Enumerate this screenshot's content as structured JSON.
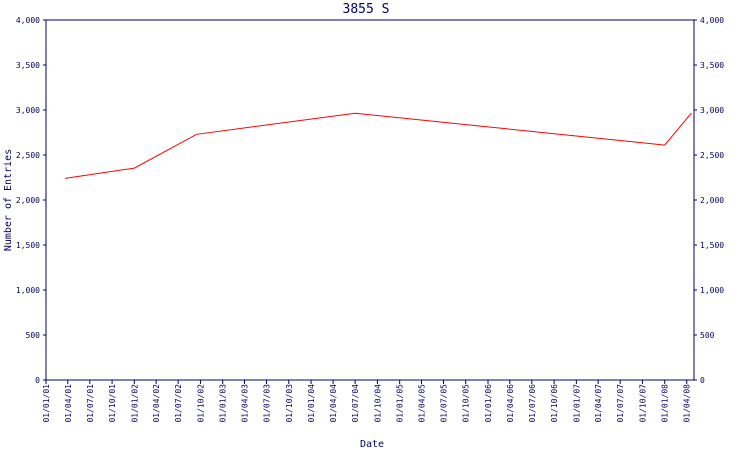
{
  "chart_data": {
    "type": "line",
    "title": "3855 S",
    "xlabel": "Date",
    "ylabel": "Number of Entries",
    "ylim": [
      0,
      4000
    ],
    "y_ticks": [
      0,
      500,
      1000,
      1500,
      2000,
      2500,
      3000,
      3500,
      4000
    ],
    "y_tick_labels": [
      "0",
      "500",
      "1,000",
      "1,500",
      "2,000",
      "2,500",
      "3,000",
      "3,500",
      "4,000"
    ],
    "x_tick_labels": [
      "01/01/01",
      "01/04/01",
      "01/07/01",
      "01/10/01",
      "01/01/02",
      "01/04/02",
      "01/07/02",
      "01/10/02",
      "01/01/03",
      "01/04/03",
      "01/07/03",
      "01/10/03",
      "01/01/04",
      "01/04/04",
      "01/07/04",
      "01/10/04",
      "01/01/05",
      "01/04/05",
      "01/07/05",
      "01/10/05",
      "01/01/06",
      "01/04/06",
      "01/07/06",
      "01/10/06",
      "01/01/07",
      "01/04/07",
      "01/07/07",
      "01/10/07",
      "01/01/08",
      "01/04/08"
    ],
    "xlim": [
      "2001-01-01",
      "2008-05-01"
    ],
    "grid": false,
    "right_axis": true,
    "series": [
      {
        "color": "#ff0000",
        "points": [
          [
            "2001-03-21",
            2240
          ],
          [
            "2002-01-01",
            2355
          ],
          [
            "2002-09-15",
            2730
          ],
          [
            "2004-07-01",
            2965
          ],
          [
            "2008-01-01",
            2610
          ],
          [
            "2008-04-20",
            2965
          ]
        ]
      }
    ]
  }
}
